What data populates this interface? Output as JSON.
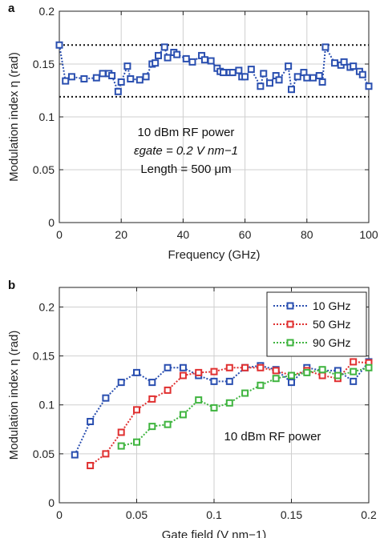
{
  "chart_data": [
    {
      "panel": "a",
      "type": "line",
      "xlabel": "Frequency (GHz)",
      "ylabel": "Modulation index η (rad)",
      "xlim": [
        0,
        100
      ],
      "ylim": [
        0,
        0.2
      ],
      "x_ticks": [
        "0",
        "20",
        "40",
        "60",
        "80",
        "100"
      ],
      "y_ticks": [
        "0",
        "0.05",
        "0.1",
        "0.15",
        "0.2"
      ],
      "grid": true,
      "annotations": [
        "10 dBm RF power",
        "εgate = 0.2 V nm−1",
        "Length = 500 μm"
      ],
      "reference_lines": [
        0.168,
        0.119
      ],
      "series": [
        {
          "color": "#2a4fb0",
          "x": [
            0,
            2,
            4,
            8,
            12,
            14,
            16,
            17,
            19,
            20,
            22,
            23,
            26,
            28,
            30,
            31,
            32,
            34,
            35,
            37,
            38,
            41,
            43,
            46,
            47,
            49,
            51,
            52,
            53,
            55,
            56,
            58,
            59,
            60,
            62,
            65,
            66,
            68,
            70,
            71,
            74,
            75,
            77,
            79,
            80,
            82,
            84,
            85,
            86,
            89,
            91,
            92,
            94,
            95,
            97,
            98,
            100
          ],
          "y": [
            0.168,
            0.134,
            0.138,
            0.136,
            0.137,
            0.141,
            0.141,
            0.139,
            0.124,
            0.133,
            0.148,
            0.136,
            0.135,
            0.138,
            0.15,
            0.151,
            0.158,
            0.166,
            0.156,
            0.161,
            0.159,
            0.155,
            0.152,
            0.158,
            0.154,
            0.153,
            0.146,
            0.143,
            0.142,
            0.142,
            0.142,
            0.144,
            0.138,
            0.138,
            0.145,
            0.129,
            0.141,
            0.132,
            0.139,
            0.135,
            0.148,
            0.126,
            0.138,
            0.142,
            0.137,
            0.137,
            0.139,
            0.133,
            0.166,
            0.151,
            0.149,
            0.152,
            0.147,
            0.148,
            0.143,
            0.14,
            0.129
          ]
        }
      ]
    },
    {
      "panel": "b",
      "type": "line",
      "xlabel": "Gate field (V nm−1)",
      "ylabel": "Modulation index η (rad)",
      "xlim": [
        0,
        0.2
      ],
      "ylim": [
        0,
        0.22
      ],
      "x_ticks": [
        "0",
        "0.05",
        "0.1",
        "0.15",
        "0.2"
      ],
      "y_ticks": [
        "0",
        "0.05",
        "0.1",
        "0.15",
        "0.2"
      ],
      "grid": true,
      "legend_position": "top-right",
      "annotations": [
        "10 dBm RF power"
      ],
      "series": [
        {
          "name": "10 GHz",
          "color": "#2a4fb0",
          "x": [
            0.01,
            0.02,
            0.03,
            0.04,
            0.05,
            0.06,
            0.07,
            0.08,
            0.09,
            0.1,
            0.11,
            0.12,
            0.13,
            0.14,
            0.15,
            0.16,
            0.17,
            0.18,
            0.19,
            0.2
          ],
          "y": [
            0.049,
            0.083,
            0.107,
            0.123,
            0.133,
            0.123,
            0.138,
            0.138,
            0.13,
            0.124,
            0.124,
            0.138,
            0.14,
            0.136,
            0.123,
            0.138,
            0.135,
            0.135,
            0.124,
            0.144
          ]
        },
        {
          "name": "50 GHz",
          "color": "#e03030",
          "x": [
            0.02,
            0.03,
            0.04,
            0.05,
            0.06,
            0.07,
            0.08,
            0.09,
            0.1,
            0.11,
            0.12,
            0.13,
            0.14,
            0.15,
            0.16,
            0.17,
            0.18,
            0.19,
            0.2
          ],
          "y": [
            0.038,
            0.05,
            0.072,
            0.095,
            0.106,
            0.115,
            0.13,
            0.133,
            0.134,
            0.138,
            0.138,
            0.138,
            0.135,
            0.13,
            0.135,
            0.13,
            0.127,
            0.144,
            0.143
          ]
        },
        {
          "name": "90 GHz",
          "color": "#3fb43f",
          "x": [
            0.04,
            0.05,
            0.06,
            0.07,
            0.08,
            0.09,
            0.1,
            0.11,
            0.12,
            0.13,
            0.14,
            0.15,
            0.16,
            0.17,
            0.18,
            0.19,
            0.2
          ],
          "y": [
            0.058,
            0.062,
            0.078,
            0.08,
            0.09,
            0.105,
            0.097,
            0.102,
            0.112,
            0.12,
            0.127,
            0.13,
            0.133,
            0.136,
            0.13,
            0.134,
            0.138
          ]
        }
      ]
    }
  ]
}
